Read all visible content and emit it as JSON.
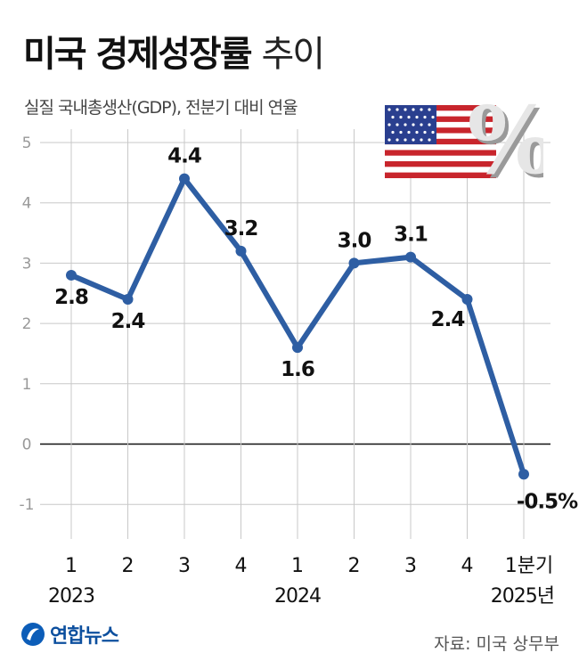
{
  "header": {
    "title_bold": "미국 경제성장률",
    "title_light": "추이",
    "subtitle": "실질 국내총생산(GDP), 전분기 대비 연율"
  },
  "footer": {
    "agency": "연합뉴스",
    "source": "자료: 미국 상무부"
  },
  "decoration": {
    "flag_icon": "us-flag-icon",
    "percent_symbol": "%"
  },
  "colors": {
    "line": "#2e5ea3",
    "grid": "#c8c8c8",
    "zero_line": "#111111",
    "axis_text": "#999999"
  },
  "chart_data": {
    "type": "line",
    "categories": [
      "1",
      "2",
      "3",
      "4",
      "1",
      "2",
      "3",
      "4",
      "1분기"
    ],
    "year_labels": [
      "2023",
      "2024",
      "2025년"
    ],
    "values": [
      2.8,
      2.4,
      4.4,
      3.2,
      1.6,
      3.0,
      3.1,
      2.4,
      -0.5
    ],
    "value_labels": [
      "2.8",
      "2.4",
      "4.4",
      "3.2",
      "1.6",
      "3.0",
      "3.1",
      "2.4",
      "-0.5%"
    ],
    "yticks": [
      "5",
      "4",
      "3",
      "2",
      "1",
      "0",
      "-1"
    ],
    "ylim": [
      -1,
      5
    ],
    "grid": true,
    "title": "미국 경제성장률 추이"
  }
}
